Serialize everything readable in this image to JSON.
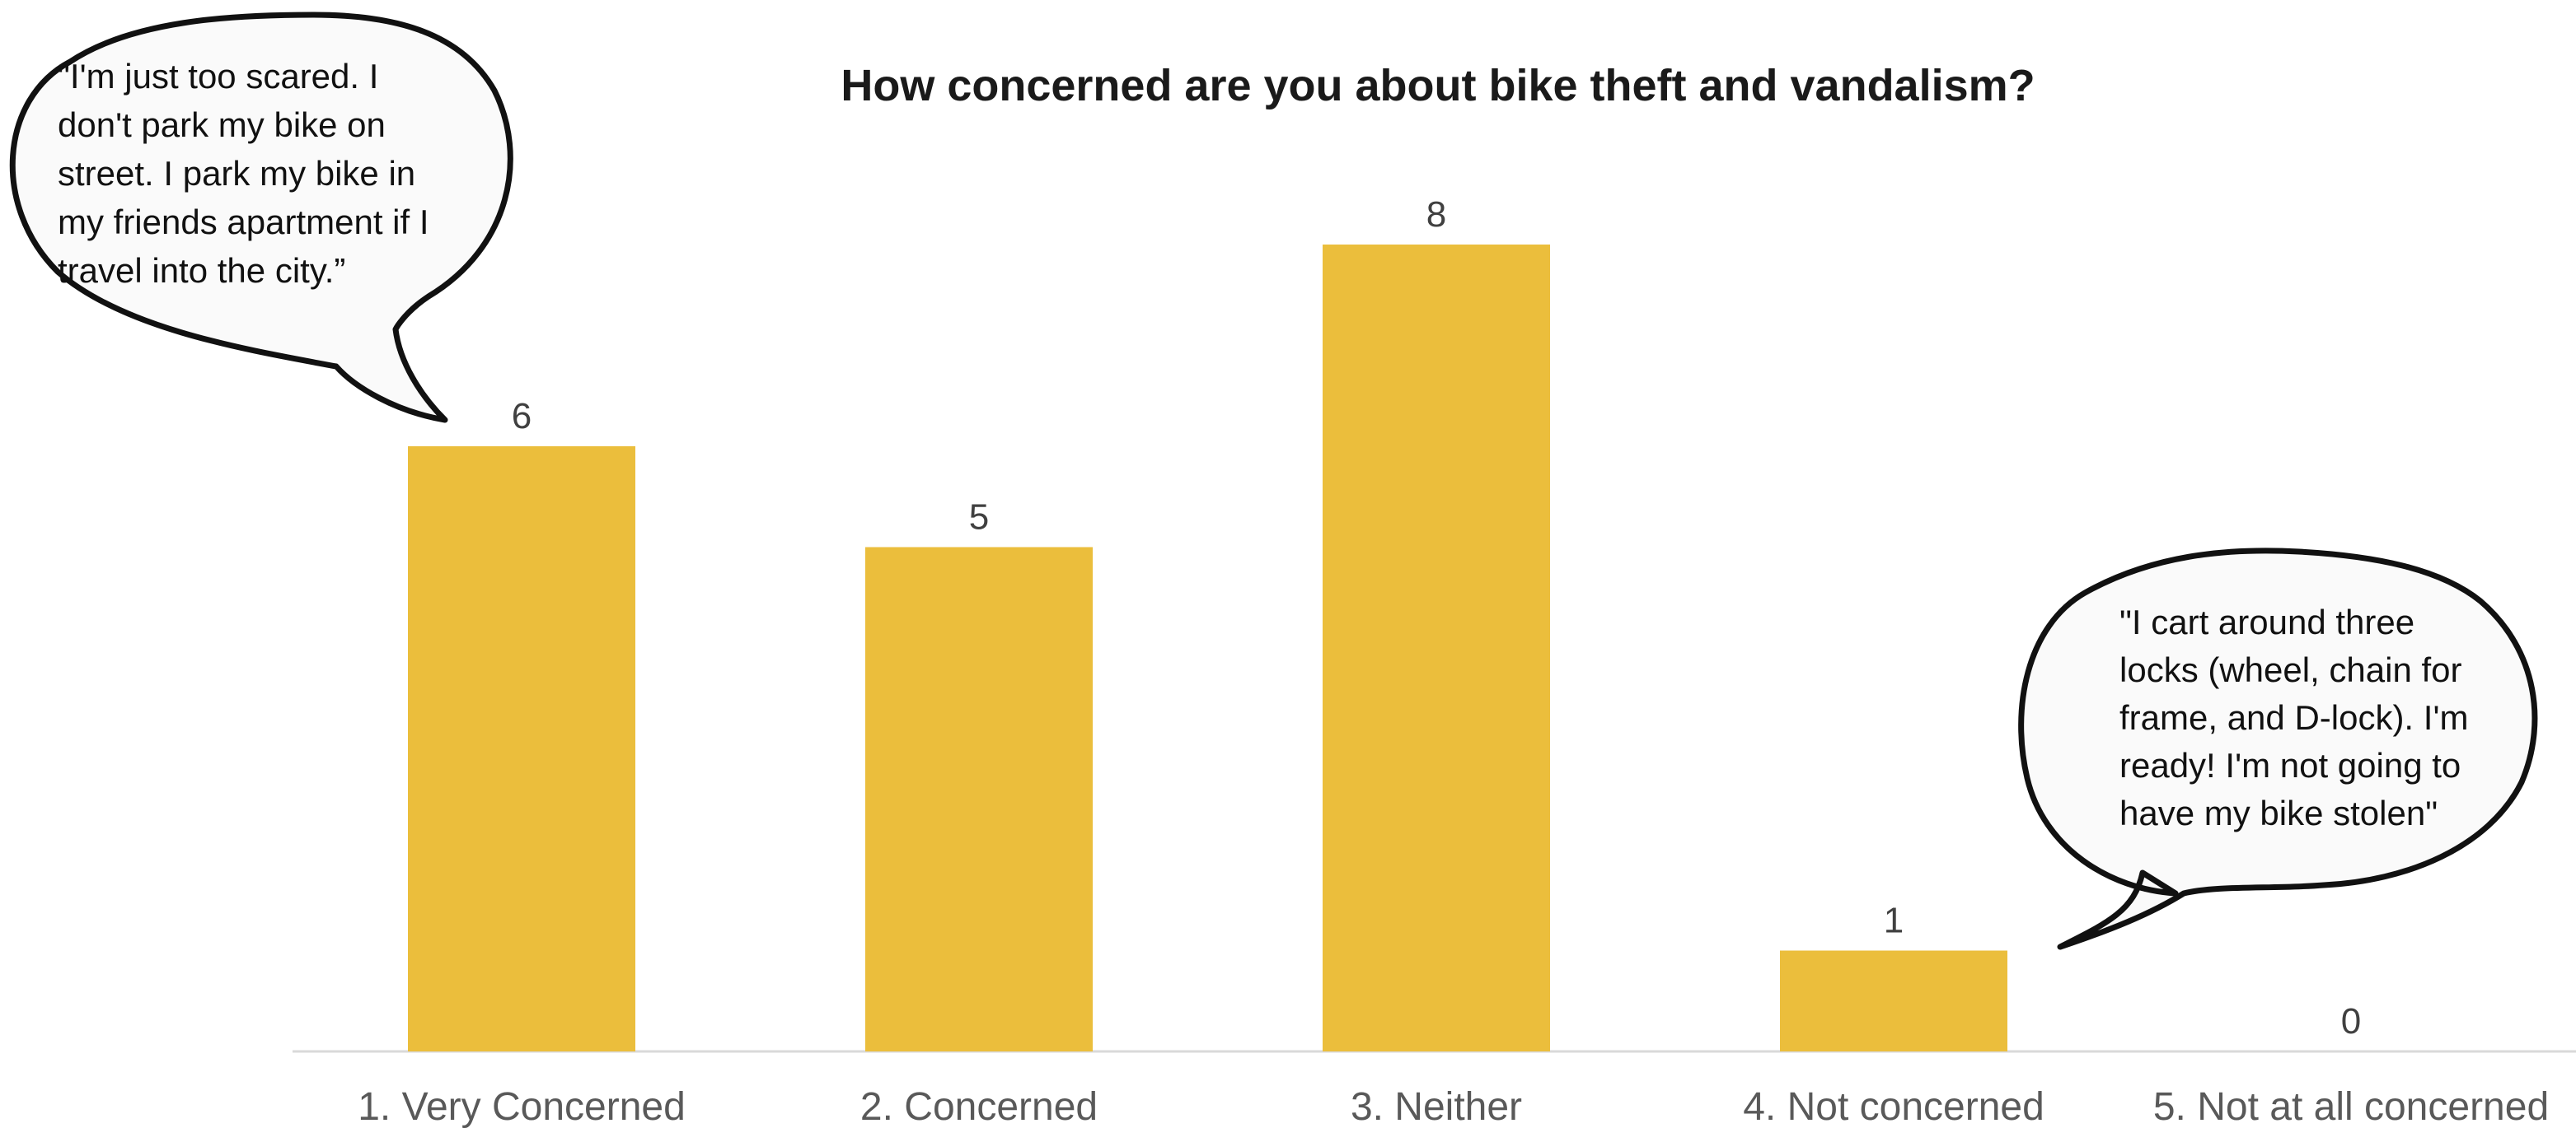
{
  "chart_data": {
    "type": "bar",
    "title": "How concerned are you about bike theft and vandalism?",
    "categories": [
      "1. Very Concerned",
      "2. Concerned",
      "3. Neither",
      "4. Not concerned",
      "5. Not at all concerned"
    ],
    "values": [
      6,
      5,
      8,
      1,
      0
    ],
    "xlabel": "",
    "ylabel": "",
    "ylim": [
      0,
      8
    ],
    "grid": false,
    "legend": "none",
    "bar_color": "#EBBE3C",
    "annotations": [
      {
        "category": "1. Very Concerned",
        "lines": [
          "\"I'm just too scared. I",
          "don't park my bike on",
          "street. I park my bike in",
          "my friends apartment if I",
          "travel into the city.”"
        ]
      },
      {
        "category": "4. Not concerned",
        "lines": [
          "\"I cart around three",
          "locks (wheel, chain for",
          "frame, and D-lock). I'm",
          "ready! I'm not going to",
          "have my bike stolen\""
        ]
      }
    ]
  }
}
